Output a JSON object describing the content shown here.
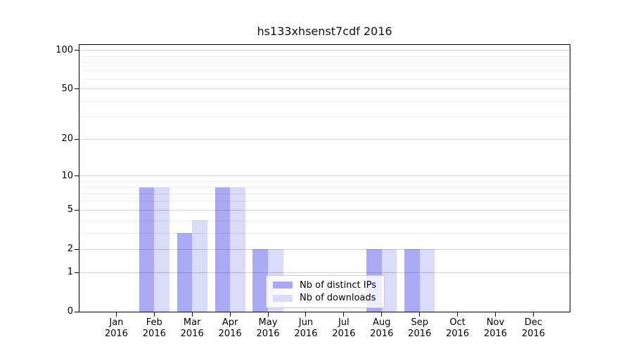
{
  "title": "hs133xhsenst7cdf 2016",
  "chart_data": {
    "type": "bar",
    "title": "hs133xhsenst7cdf 2016",
    "x_year": "2016",
    "categories": [
      "Jan",
      "Feb",
      "Mar",
      "Apr",
      "May",
      "Jun",
      "Jul",
      "Aug",
      "Sep",
      "Oct",
      "Nov",
      "Dec"
    ],
    "series": [
      {
        "name": "Nb of distinct IPs",
        "color": "#a9a9f4",
        "values": [
          0,
          8,
          3,
          8,
          2,
          0,
          0,
          2,
          2,
          0,
          0,
          0
        ]
      },
      {
        "name": "Nb of downloads",
        "color": "#dadaf9",
        "values": [
          0,
          8,
          4,
          8,
          2,
          0,
          0,
          2,
          2,
          0,
          0,
          0
        ]
      }
    ],
    "y_axis": {
      "scale": "log1p",
      "ylim": [
        0,
        110
      ],
      "tick_values": [
        0,
        1,
        2,
        5,
        10,
        20,
        50,
        100
      ],
      "major_grid_values": [
        1,
        2,
        5,
        10,
        20,
        50,
        100
      ],
      "minor_grid_values": [
        3,
        4,
        6,
        7,
        8,
        9,
        30,
        40,
        60,
        70,
        80,
        90
      ]
    },
    "legend": {
      "entries": [
        "Nb of distinct IPs",
        "Nb of downloads"
      ],
      "position": "lower center"
    },
    "grid": true
  },
  "colors": {
    "bar_distinct_ips": "#a9a9f4",
    "bar_downloads": "#dadaf9",
    "axis": "#000000",
    "grid_minor": "#ececec",
    "grid_major": "#d6d6d6",
    "background": "#ffffff"
  }
}
